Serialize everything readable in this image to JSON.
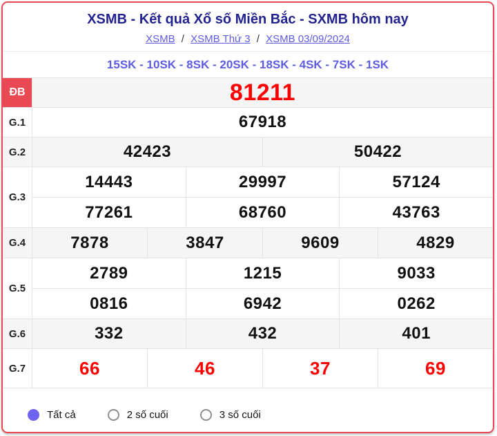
{
  "colors": {
    "card_border_red": "#e84952",
    "special_label_bg": "#e84952",
    "highlight_number_red": "#fe0000",
    "title_navy": "#23238f",
    "link_purple": "#5e5ce0",
    "radio_selected_purple": "#6e64f0",
    "alt_row_gray": "#f5f5f6"
  },
  "header": {
    "title": "XSMB - Kết quả Xổ số Miền Bắc - SXMB hôm nay",
    "separator": "/",
    "breadcrumb": [
      {
        "label": "XSMB"
      },
      {
        "label": "XSMB Thứ 3"
      },
      {
        "label": "XSMB 03/09/2024"
      }
    ],
    "subtitle": "15SK - 10SK - 8SK - 20SK - 18SK - 4SK - 7SK - 1SK"
  },
  "table": {
    "groups": [
      {
        "label": "ĐB",
        "label_highlight": true,
        "value_highlight": true,
        "rows": [
          [
            "81211"
          ]
        ]
      },
      {
        "label": "G.1",
        "rows": [
          [
            "67918"
          ]
        ]
      },
      {
        "label": "G.2",
        "rows": [
          [
            "42423",
            "50422"
          ]
        ]
      },
      {
        "label": "G.3",
        "rows": [
          [
            "14443",
            "29997",
            "57124"
          ],
          [
            "77261",
            "68760",
            "43763"
          ]
        ]
      },
      {
        "label": "G.4",
        "rows": [
          [
            "7878",
            "3847",
            "9609",
            "4829"
          ]
        ]
      },
      {
        "label": "G.5",
        "rows": [
          [
            "2789",
            "1215",
            "9033"
          ],
          [
            "0816",
            "6942",
            "0262"
          ]
        ]
      },
      {
        "label": "G.6",
        "rows": [
          [
            "332",
            "432",
            "401"
          ]
        ]
      },
      {
        "label": "G.7",
        "value_highlight": true,
        "rows": [
          [
            "66",
            "46",
            "37",
            "69"
          ]
        ]
      }
    ]
  },
  "filters": {
    "options": [
      {
        "label": "Tất cả",
        "selected": true
      },
      {
        "label": "2 số cuối",
        "selected": false
      },
      {
        "label": "3 số cuối",
        "selected": false
      }
    ]
  }
}
